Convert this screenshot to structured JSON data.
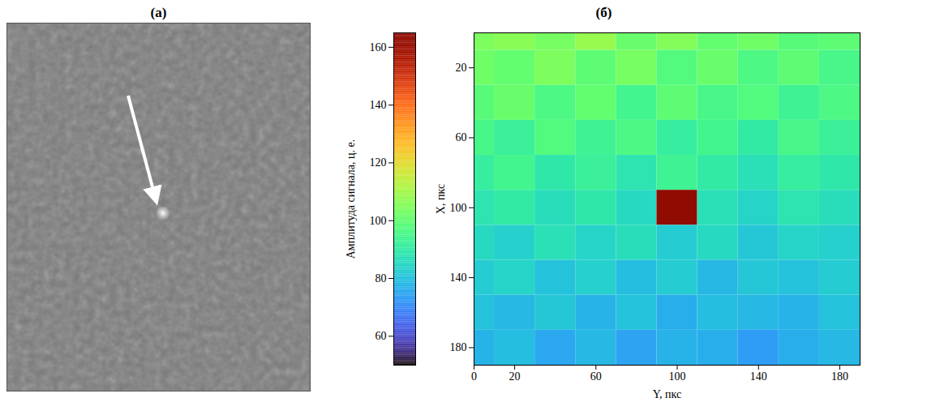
{
  "chart_data": [
    {
      "type": "image",
      "title": "(а)"
    },
    {
      "type": "heatmap",
      "title": "(б)",
      "xlabel": "Y, пкс",
      "ylabel": "X, пкс",
      "zlabel": "Амплитуда сигнала, ц. е.",
      "x": [
        0,
        20,
        40,
        60,
        80,
        100,
        120,
        140,
        160,
        180
      ],
      "y": [
        0,
        20,
        40,
        60,
        80,
        100,
        120,
        140,
        160,
        180
      ],
      "values": [
        [
          104,
          106,
          103,
          108,
          101,
          105,
          100,
          102,
          98,
          99
        ],
        [
          102,
          100,
          104,
          99,
          103,
          97,
          101,
          96,
          99,
          95
        ],
        [
          98,
          101,
          96,
          100,
          94,
          99,
          95,
          97,
          93,
          96
        ],
        [
          95,
          92,
          97,
          93,
          96,
          91,
          94,
          90,
          95,
          92
        ],
        [
          91,
          94,
          89,
          92,
          88,
          93,
          90,
          87,
          91,
          89
        ],
        [
          88,
          90,
          86,
          89,
          85,
          165,
          87,
          84,
          88,
          86
        ],
        [
          85,
          83,
          87,
          84,
          86,
          82,
          85,
          81,
          84,
          83
        ],
        [
          82,
          84,
          80,
          83,
          79,
          82,
          78,
          81,
          80,
          82
        ],
        [
          80,
          78,
          81,
          77,
          80,
          76,
          79,
          78,
          77,
          80
        ],
        [
          77,
          79,
          75,
          78,
          74,
          77,
          76,
          73,
          76,
          78
        ]
      ],
      "xlim": [
        0,
        190
      ],
      "xticks": [
        0,
        20,
        60,
        100,
        140,
        180
      ],
      "ylim": [
        0,
        190
      ],
      "yticks": [
        20,
        60,
        100,
        140,
        180
      ],
      "colorbar_range": [
        50,
        165
      ],
      "colorbar_ticks": [
        60,
        80,
        100,
        120,
        140,
        160
      ]
    }
  ]
}
